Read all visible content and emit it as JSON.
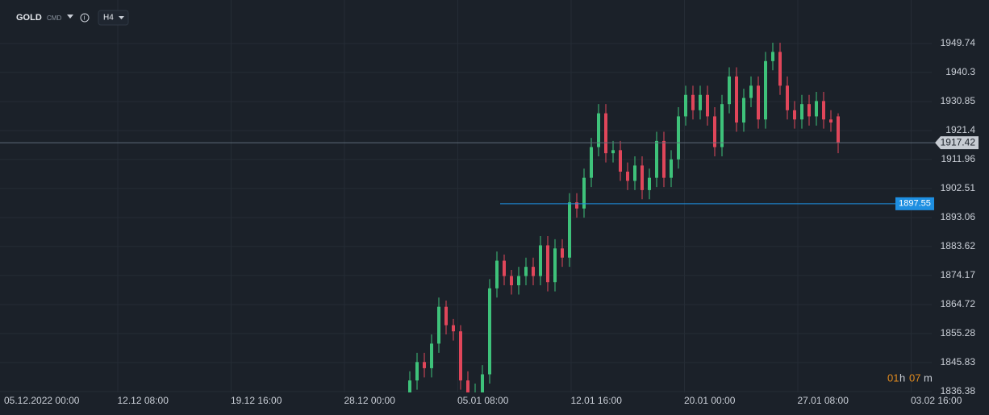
{
  "header": {
    "symbol": "GOLD",
    "market": "CMD",
    "timeframe": "H4"
  },
  "timer": {
    "hours": "01",
    "h": "h",
    "minutes": "07",
    "m": "m"
  },
  "chart_data": {
    "type": "candlestick",
    "colors": {
      "up": "#3ec27a",
      "down": "#e0465a"
    },
    "x_labels": [
      "05.12.2022  00:00",
      "12.12  08:00",
      "19.12  16:00",
      "28.12  00:00",
      "05.01  08:00",
      "12.01  16:00",
      "20.01  00:00",
      "27.01  08:00",
      "03.02  16:00"
    ],
    "ylim": [
      1836.1,
      1963.9
    ],
    "yticks": [
      1836.38,
      1845.83,
      1855.28,
      1864.72,
      1874.17,
      1883.62,
      1893.06,
      1902.51,
      1911.96,
      1921.4,
      1930.85,
      1940.3,
      1949.74
    ],
    "grid": true,
    "series": [
      {
        "open": [
          1836,
          1840,
          1846,
          1844,
          1852,
          1864,
          1858,
          1856,
          1840,
          1834,
          1836,
          1842,
          1870,
          1879,
          1874,
          1871,
          1874,
          1877,
          1874,
          1884,
          1872,
          1883,
          1880,
          1898,
          1896,
          1906,
          1916,
          1927,
          1914,
          1915,
          1908,
          1905,
          1910,
          1902,
          1906,
          1918,
          1906,
          1912,
          1926,
          1933,
          1928,
          1933,
          1926,
          1916,
          1930,
          1939,
          1924,
          1932,
          1936,
          1925,
          1944,
          1947,
          1936,
          1928,
          1925,
          1930,
          1926,
          1931,
          1925,
          1926
        ],
        "high": [
          1843,
          1849,
          1849,
          1855,
          1867,
          1866,
          1860,
          1858,
          1843,
          1839,
          1845,
          1873,
          1882,
          1881,
          1876,
          1877,
          1880,
          1880,
          1887,
          1887,
          1886,
          1886,
          1901,
          1901,
          1909,
          1919,
          1930,
          1930,
          1918,
          1918,
          1911,
          1913,
          1913,
          1909,
          1921,
          1921,
          1915,
          1929,
          1936,
          1936,
          1936,
          1936,
          1929,
          1933,
          1942,
          1942,
          1935,
          1939,
          1939,
          1947,
          1950,
          1950,
          1939,
          1931,
          1933,
          1933,
          1934,
          1934,
          1928,
          1927
        ],
        "low": [
          1833,
          1837,
          1841,
          1841,
          1849,
          1855,
          1853,
          1837,
          1831,
          1831,
          1833,
          1839,
          1867,
          1871,
          1868,
          1868,
          1871,
          1871,
          1871,
          1869,
          1869,
          1877,
          1877,
          1893,
          1893,
          1903,
          1913,
          1911,
          1911,
          1905,
          1902,
          1902,
          1899,
          1899,
          1903,
          1903,
          1903,
          1909,
          1923,
          1925,
          1925,
          1923,
          1913,
          1913,
          1927,
          1921,
          1921,
          1929,
          1922,
          1922,
          1941,
          1933,
          1925,
          1922,
          1922,
          1923,
          1923,
          1922,
          1921,
          1914
        ],
        "close": [
          1840,
          1846,
          1844,
          1852,
          1864,
          1858,
          1856,
          1840,
          1834,
          1836,
          1842,
          1870,
          1879,
          1874,
          1871,
          1874,
          1877,
          1874,
          1884,
          1872,
          1883,
          1880,
          1898,
          1896,
          1906,
          1916,
          1927,
          1914,
          1915,
          1908,
          1905,
          1910,
          1902,
          1906,
          1918,
          1906,
          1912,
          1926,
          1933,
          1928,
          1933,
          1926,
          1916,
          1930,
          1939,
          1924,
          1932,
          1936,
          1925,
          1944,
          1947,
          1936,
          1928,
          1925,
          1930,
          1926,
          1931,
          1925,
          1924,
          1917.42
        ]
      }
    ],
    "current_price": {
      "value": 1917.42,
      "label": "1917.42",
      "color": "#5d6b78"
    },
    "level": {
      "value": 1897.55,
      "label": "1897.55",
      "color": "#1e8fe1"
    }
  }
}
